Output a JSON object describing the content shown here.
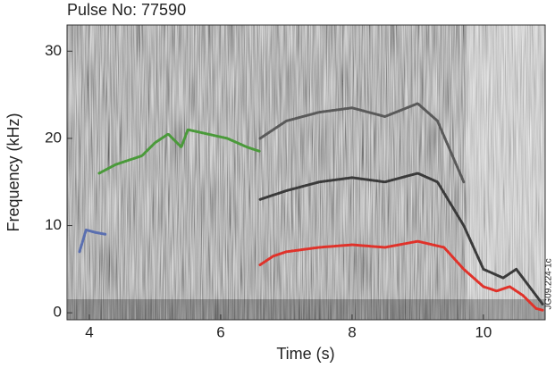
{
  "chart_data": {
    "type": "line",
    "title": "Pulse No: 77590",
    "x_label": "Time (s)",
    "y_label": "Frequency (kHz)",
    "side_note": "JG09.224-1c",
    "xlim": [
      3.66,
      10.94
    ],
    "ylim": [
      -0.8,
      33
    ],
    "xticks": [
      4,
      6,
      8,
      10
    ],
    "yticks": [
      0,
      10,
      20,
      30
    ],
    "series": [
      {
        "color": "#5a6fb0",
        "x": [
          3.85,
          3.95,
          4.1,
          4.25
        ],
        "values": [
          7,
          9.5,
          9.2,
          9
        ]
      },
      {
        "color": "#4a9a3a",
        "x": [
          4.15,
          4.4,
          4.6,
          4.8,
          5.0,
          5.2,
          5.4,
          5.5,
          5.8,
          6.1,
          6.4,
          6.6
        ],
        "values": [
          16,
          17,
          17.5,
          18,
          19.5,
          20.5,
          19,
          21,
          20.5,
          20,
          19,
          18.5
        ]
      },
      {
        "color": "#e0322a",
        "x": [
          6.6,
          6.8,
          7.0,
          7.5,
          8.0,
          8.5,
          9.0,
          9.4,
          9.7,
          10.0,
          10.2,
          10.4,
          10.6,
          10.8,
          10.9
        ],
        "values": [
          5.5,
          6.5,
          7,
          7.5,
          7.8,
          7.5,
          8.2,
          7.5,
          5,
          3,
          2.5,
          3,
          2,
          0.5,
          0.3
        ]
      },
      {
        "color": "#3a3a3a",
        "x": [
          6.6,
          7.0,
          7.5,
          8.0,
          8.5,
          9.0,
          9.3,
          9.7,
          10.0,
          10.3,
          10.5,
          10.9
        ],
        "values": [
          13,
          14,
          15,
          15.5,
          15,
          16,
          15,
          10,
          5,
          4,
          5,
          1
        ]
      },
      {
        "color": "#5a5a5a",
        "x": [
          6.6,
          7.0,
          7.5,
          8.0,
          8.5,
          9.0,
          9.3,
          9.7
        ],
        "values": [
          20,
          22,
          23,
          23.5,
          22.5,
          24,
          22,
          15
        ]
      }
    ]
  }
}
